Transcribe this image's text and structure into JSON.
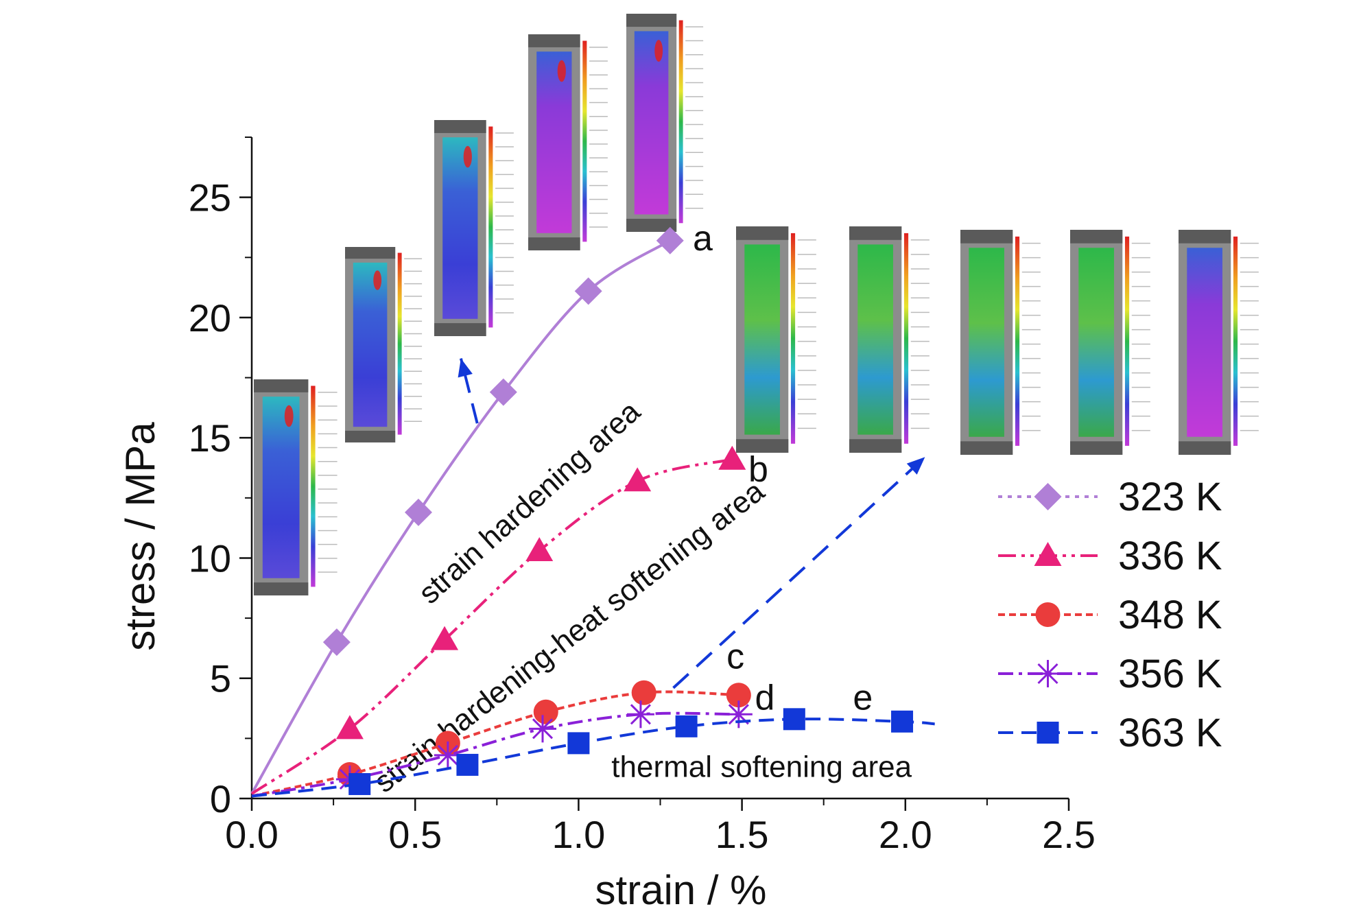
{
  "chart_data": {
    "type": "line",
    "xlabel": "strain / %",
    "ylabel": "stress / MPa",
    "xlim": [
      0,
      2.5
    ],
    "ylim": [
      0,
      27.5
    ],
    "x_ticks": [
      0.0,
      0.5,
      1.0,
      1.5,
      2.0,
      2.5
    ],
    "x_tick_labels": [
      "0.0",
      "0.5",
      "1.0",
      "1.5",
      "2.0",
      "2.5"
    ],
    "y_ticks": [
      0,
      5,
      10,
      15,
      20,
      25
    ],
    "y_tick_labels": [
      "0",
      "5",
      "10",
      "15",
      "20",
      "25"
    ],
    "grid": false,
    "legend_position": "right",
    "series": [
      {
        "name": "323 K",
        "color": "#b07fd6",
        "marker": "diamond",
        "x": [
          0.0,
          0.26,
          0.51,
          0.77,
          1.03,
          1.28
        ],
        "y": [
          0.2,
          6.5,
          11.9,
          16.9,
          21.1,
          23.2
        ]
      },
      {
        "name": "336 K",
        "color": "#e8217a",
        "marker": "triangle",
        "x": [
          0.0,
          0.3,
          0.59,
          0.88,
          1.18,
          1.47
        ],
        "y": [
          0.2,
          2.9,
          6.6,
          10.3,
          13.2,
          14.1
        ]
      },
      {
        "name": "348 K",
        "color": "#ea3c3c",
        "marker": "circle",
        "x": [
          0.0,
          0.3,
          0.6,
          0.9,
          1.2,
          1.49
        ],
        "y": [
          0.1,
          1.0,
          2.3,
          3.6,
          4.4,
          4.3
        ]
      },
      {
        "name": "356 K",
        "color": "#8a20d8",
        "marker": "asterisk",
        "x": [
          0.0,
          0.3,
          0.6,
          0.89,
          1.19,
          1.49
        ],
        "y": [
          0.1,
          0.8,
          1.8,
          2.9,
          3.5,
          3.5
        ]
      },
      {
        "name": "363 K",
        "color": "#1238d8",
        "marker": "square",
        "x": [
          0.0,
          0.33,
          0.66,
          1.0,
          1.33,
          1.66,
          1.99,
          2.09
        ],
        "y": [
          0.1,
          0.6,
          1.4,
          2.3,
          3.0,
          3.3,
          3.2,
          3.1
        ]
      }
    ],
    "curve_labels": [
      {
        "text": "a",
        "x": 1.38,
        "y": 22.8
      },
      {
        "text": "b",
        "x": 1.55,
        "y": 13.2
      },
      {
        "text": "c",
        "x": 1.48,
        "y": 5.4
      },
      {
        "text": "d",
        "x": 1.57,
        "y": 3.7
      },
      {
        "text": "e",
        "x": 1.87,
        "y": 3.7
      }
    ],
    "annotations": [
      {
        "text": "strain hardening area",
        "x": 0.87,
        "y": 12.0,
        "angle": -42
      },
      {
        "text": "strain hardening-heat softening area",
        "x": 0.99,
        "y": 6.4,
        "angle": -38
      },
      {
        "text": "thermal softening area",
        "x": 1.56,
        "y": 0.9,
        "angle": 0
      }
    ],
    "inset_images": {
      "description_colors": [
        "#3a3fd6",
        "#2db84a",
        "#e6e62e",
        "#e02020",
        "#c23ad8"
      ]
    }
  }
}
